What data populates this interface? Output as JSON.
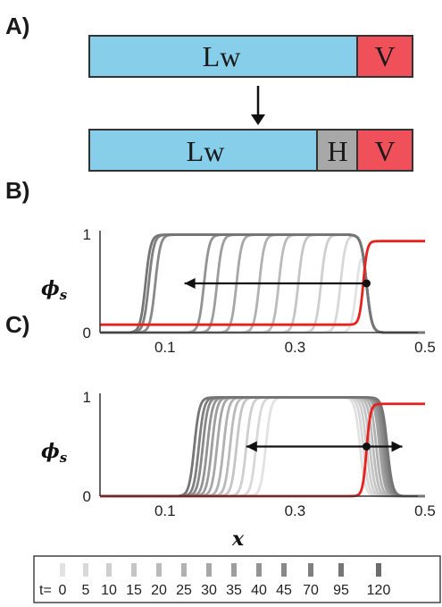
{
  "panels": {
    "a_label": "A)",
    "b_label": "B)",
    "c_label": "C)"
  },
  "schematic": {
    "top_bar": [
      {
        "text": "Lw",
        "color": "#87ceeb"
      },
      {
        "text": "V",
        "color": "#f0505a"
      }
    ],
    "bottom_bar": [
      {
        "text": "Lw",
        "color": "#87ceeb"
      },
      {
        "text": "H",
        "color": "#a8a8a8"
      },
      {
        "text": "V",
        "color": "#f0505a"
      }
    ]
  },
  "chart_data": [
    {
      "panel": "B",
      "type": "line",
      "ylabel": "ϕ_s",
      "xlabel": "",
      "xlim": [
        0.0,
        0.5
      ],
      "ylim": [
        0,
        1
      ],
      "x_ticks": [
        "0.1",
        "0.3",
        "0.5"
      ],
      "x_tick_values": [
        0.1,
        0.3,
        0.5
      ],
      "y_ticks": [
        "0",
        "1"
      ],
      "y_tick_values": [
        0,
        1
      ],
      "grey_profiles": {
        "right_edge": 0.41,
        "left_edges": [
          0.395,
          0.37,
          0.34,
          0.305,
          0.275,
          0.245,
          0.21,
          0.18,
          0.16,
          0.085,
          0.075,
          0.07
        ]
      },
      "red_profile": {
        "low": 0.08,
        "high": 0.93,
        "step_x": 0.405
      },
      "arrow": {
        "from_x": 0.41,
        "to_x": 0.13,
        "y": 0.5
      }
    },
    {
      "panel": "C",
      "type": "line",
      "ylabel": "ϕ_s",
      "xlabel": "x",
      "xlim": [
        0.0,
        0.5
      ],
      "ylim": [
        0,
        1
      ],
      "x_ticks": [
        "0.1",
        "0.3",
        "0.5"
      ],
      "x_tick_values": [
        0.1,
        0.3,
        0.5
      ],
      "y_ticks": [
        "0",
        "1"
      ],
      "y_tick_values": [
        0,
        1
      ],
      "grey_profiles": {
        "left_edges": [
          0.255,
          0.24,
          0.225,
          0.21,
          0.2,
          0.19,
          0.18,
          0.172,
          0.165,
          0.158,
          0.152,
          0.145
        ],
        "right_edges": [
          0.4,
          0.405,
          0.41,
          0.415,
          0.42,
          0.425,
          0.43,
          0.432,
          0.435,
          0.437,
          0.44,
          0.442
        ]
      },
      "red_profile": {
        "low": 0.0,
        "high": 0.93,
        "step_x": 0.41
      },
      "arrow": {
        "from_x": 0.225,
        "to_x": 0.465,
        "dot_x": 0.41,
        "y": 0.5,
        "double": true
      }
    }
  ],
  "legend": {
    "prefix": "t=",
    "times": [
      "0",
      "5",
      "10",
      "15",
      "20",
      "25",
      "30",
      "35",
      "40",
      "45",
      "70",
      "95",
      "120"
    ],
    "colors": [
      "#e2e2e2",
      "#d8d8d8",
      "#cfcfcf",
      "#c5c5c5",
      "#bbbbbb",
      "#b1b1b1",
      "#a7a7a7",
      "#9d9d9d",
      "#939393",
      "#898989",
      "#7f7f7f",
      "#757575",
      "#6b6b6b"
    ]
  }
}
